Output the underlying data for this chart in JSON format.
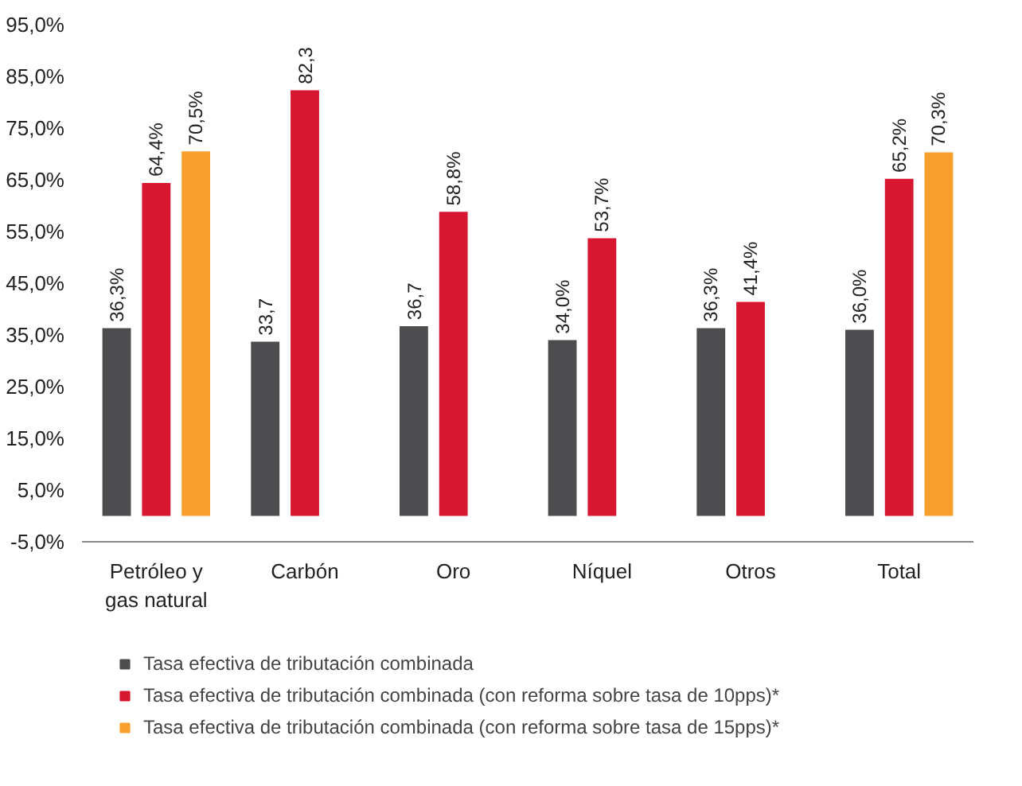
{
  "chart_data": {
    "type": "bar",
    "categories": [
      "Petróleo y\ngas natural",
      "Carbón",
      "Oro",
      "Níquel",
      "Otros",
      "Total"
    ],
    "series": [
      {
        "name": "Tasa efectiva de tributación combinada",
        "color": "#4d4d4f",
        "values": [
          36.3,
          33.7,
          36.7,
          34.0,
          36.3,
          36.0
        ],
        "value_labels": [
          "36,3%",
          "33,7",
          "36,7",
          "34,0%",
          "36,3%",
          "36,0%"
        ]
      },
      {
        "name": "Tasa efectiva de tributación combinada (con reforma sobre tasa de 10pps)*",
        "color": "#d7172f",
        "values": [
          64.4,
          82.3,
          58.8,
          53.7,
          41.4,
          65.2
        ],
        "value_labels": [
          "64,4%",
          "82,3",
          "58,8%",
          "53,7%",
          "41,4%",
          "65,2%"
        ]
      },
      {
        "name": "Tasa efectiva de tributación combinada (con reforma sobre tasa de 15pps)*",
        "color": "#f7a030",
        "values": [
          70.5,
          null,
          null,
          null,
          null,
          70.3
        ],
        "value_labels": [
          "70,5%",
          null,
          null,
          null,
          null,
          "70,3%"
        ]
      }
    ],
    "ylim": [
      -5,
      95
    ],
    "yticks": [
      {
        "value": -5,
        "label": "-5,0%"
      },
      {
        "value": 5,
        "label": "5,0%"
      },
      {
        "value": 15,
        "label": "15,0%"
      },
      {
        "value": 25,
        "label": "25,0%"
      },
      {
        "value": 35,
        "label": "35,0%"
      },
      {
        "value": 45,
        "label": "45,0%"
      },
      {
        "value": 55,
        "label": "55,0%"
      },
      {
        "value": 65,
        "label": "65,0%"
      },
      {
        "value": 75,
        "label": "75,0%"
      },
      {
        "value": 85,
        "label": "85,0%"
      },
      {
        "value": 95,
        "label": "95,0%"
      }
    ],
    "grid": false,
    "legend": "bottom"
  }
}
